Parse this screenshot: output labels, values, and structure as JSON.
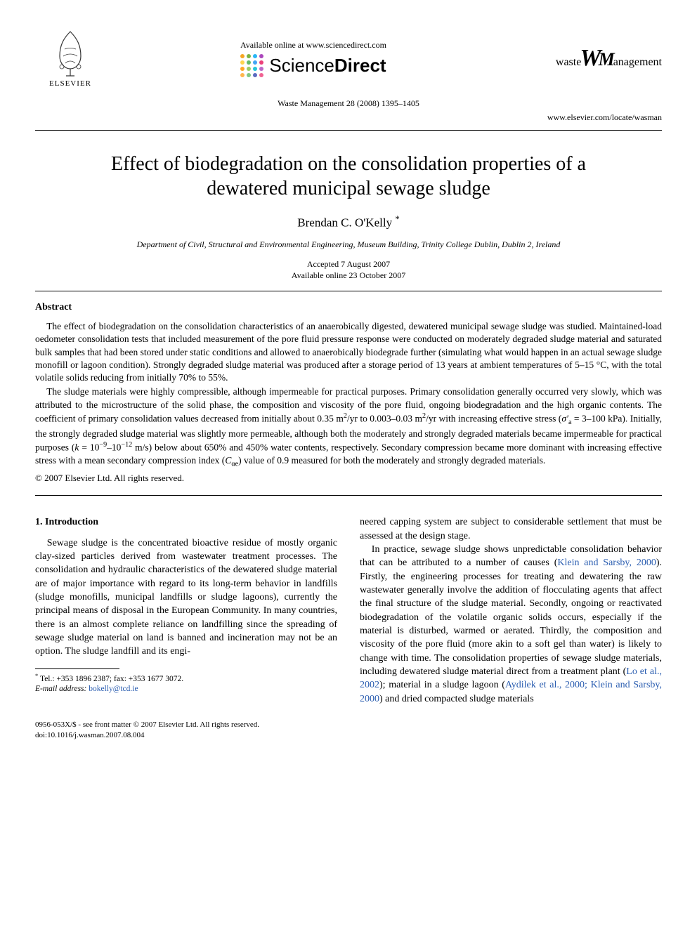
{
  "header": {
    "elsevier_label": "ELSEVIER",
    "available_online": "Available online at www.sciencedirect.com",
    "sciencedirect": {
      "science": "Science",
      "direct": "Direct"
    },
    "dot_colors": [
      "#f5a623",
      "#7cb342",
      "#29b6f6",
      "#ab47bc",
      "#ffd54f",
      "#66bb6a",
      "#42a5f5",
      "#ec407a",
      "#ffa726",
      "#9ccc65",
      "#26c6da",
      "#ba68c8",
      "#ffb74d",
      "#81c784",
      "#5c6bc0",
      "#f06292"
    ],
    "journal_logo_pre": "waste",
    "journal_logo_w": "W",
    "journal_logo_post": "anagement",
    "journal_logo_m": "M",
    "citation": "Waste Management 28 (2008) 1395–1405",
    "locate_url": "www.elsevier.com/locate/wasman"
  },
  "title": "Effect of biodegradation on the consolidation properties of a dewatered municipal sewage sludge",
  "author": {
    "name": "Brendan C. O'Kelly",
    "marker": "*"
  },
  "affiliation": "Department of Civil, Structural and Environmental Engineering, Museum Building, Trinity College Dublin, Dublin 2, Ireland",
  "dates": {
    "accepted": "Accepted 7 August 2007",
    "online": "Available online 23 October 2007"
  },
  "abstract": {
    "heading": "Abstract",
    "p1": "The effect of biodegradation on the consolidation characteristics of an anaerobically digested, dewatered municipal sewage sludge was studied. Maintained-load oedometer consolidation tests that included measurement of the pore fluid pressure response were conducted on moderately degraded sludge material and saturated bulk samples that had been stored under static conditions and allowed to anaerobically biodegrade further (simulating what would happen in an actual sewage sludge monofill or lagoon condition). Strongly degraded sludge material was produced after a storage period of 13 years at ambient temperatures of 5–15 °C, with the total volatile solids reducing from initially 70% to 55%.",
    "p2_a": "The sludge materials were highly compressible, although impermeable for practical purposes. Primary consolidation generally occurred very slowly, which was attributed to the microstructure of the solid phase, the composition and viscosity of the pore fluid, ongoing biodegradation and the high organic contents. The coefficient of primary consolidation values decreased from initially about 0.35 m",
    "p2_b": "/yr to 0.003–0.03 m",
    "p2_c": "/yr with increasing effective stress (",
    "p2_sigma": "σ′",
    "p2_sub": "a",
    "p2_d": " = 3–100 kPa). Initially, the strongly degraded sludge material was slightly more permeable, although both the moderately and strongly degraded materials became impermeable for practical purposes (",
    "p2_k": "k",
    "p2_e": " = 10",
    "p2_exp1": "−9",
    "p2_f": "–10",
    "p2_exp2": "−12",
    "p2_g": " m/s) below about 650% and 450% water contents, respectively. Secondary compression became more dominant with increasing effective stress with a mean secondary compression index (",
    "p2_cae": "C",
    "p2_cae_sub": "αe",
    "p2_h": ") value of 0.9 measured for both the moderately and strongly degraded materials.",
    "copyright": "© 2007 Elsevier Ltd. All rights reserved."
  },
  "body": {
    "section_heading": "1. Introduction",
    "col1_p1": "Sewage sludge is the concentrated bioactive residue of mostly organic clay-sized particles derived from wastewater treatment processes. The consolidation and hydraulic characteristics of the dewatered sludge material are of major importance with regard to its long-term behavior in landfills (sludge monofills, municipal landfills or sludge lagoons), currently the principal means of disposal in the European Community. In many countries, there is an almost complete reliance on landfilling since the spreading of sewage sludge material on land is banned and incineration may not be an option. The sludge landfill and its engi-",
    "col2_p1a": "neered capping system are subject to considerable settlement that must be assessed at the design stage.",
    "col2_p2a": "In practice, sewage sludge shows unpredictable consolidation behavior that can be attributed to a number of causes (",
    "ref1": "Klein and Sarsby, 2000",
    "col2_p2b": "). Firstly, the engineering processes for treating and dewatering the raw wastewater generally involve the addition of flocculating agents that affect the final structure of the sludge material. Secondly, ongoing or reactivated biodegradation of the volatile organic solids occurs, especially if the material is disturbed, warmed or aerated. Thirdly, the composition and viscosity of the pore fluid (more akin to a soft gel than water) is likely to change with time. The consolidation properties of sewage sludge materials, including dewatered sludge material direct from a treatment plant (",
    "ref2": "Lo et al., 2002",
    "col2_p2c": "); material in a sludge lagoon (",
    "ref3": "Aydilek et al., 2000; Klein and Sarsby, 2000",
    "col2_p2d": ") and dried compacted sludge materials"
  },
  "footnote": {
    "star": "*",
    "contact": "Tel.: +353 1896 2387; fax: +353 1677 3072.",
    "email_label": "E-mail address:",
    "email": "bokelly@tcd.ie"
  },
  "footer": {
    "left1": "0956-053X/$ - see front matter © 2007 Elsevier Ltd. All rights reserved.",
    "left2": "doi:10.1016/j.wasman.2007.08.004"
  }
}
